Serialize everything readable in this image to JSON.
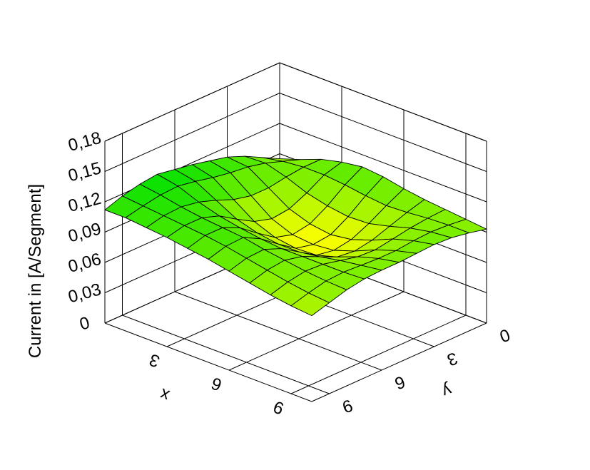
{
  "chart_data": {
    "type": "surface",
    "title": "",
    "xlabel": "x",
    "ylabel": "y",
    "zlabel": "Current in [A/Segment]",
    "x_range": [
      0,
      10
    ],
    "y_range": [
      0,
      10
    ],
    "z_range": [
      0,
      0.18
    ],
    "x_ticks": [
      {
        "value": 0,
        "label": ""
      },
      {
        "value": 3,
        "label": "3"
      },
      {
        "value": 6,
        "label": "6"
      },
      {
        "value": 9,
        "label": "9"
      }
    ],
    "y_ticks": [
      {
        "value": 0,
        "label": "0"
      },
      {
        "value": 3,
        "label": "3"
      },
      {
        "value": 6,
        "label": "6"
      },
      {
        "value": 9,
        "label": "9"
      }
    ],
    "z_ticks": [
      {
        "value": 0,
        "label": "0"
      },
      {
        "value": 0.03,
        "label": "0,03"
      },
      {
        "value": 0.06,
        "label": "0,06"
      },
      {
        "value": 0.09,
        "label": "0,09"
      },
      {
        "value": 0.12,
        "label": "0,12"
      },
      {
        "value": 0.15,
        "label": "0,15"
      },
      {
        "value": 0.18,
        "label": "0,18"
      }
    ],
    "grid": true,
    "colormap": {
      "low": "#ffff00",
      "high": "#00e000"
    },
    "x": [
      0,
      1,
      2,
      3,
      4,
      5,
      6,
      7,
      8,
      9,
      10
    ],
    "y": [
      0,
      1,
      2,
      3,
      4,
      5,
      6,
      7,
      8,
      9,
      10
    ],
    "z": [
      [
        0.085,
        0.094,
        0.103,
        0.11,
        0.114,
        0.118,
        0.121,
        0.124,
        0.122,
        0.118,
        0.112
      ],
      [
        0.092,
        0.098,
        0.104,
        0.108,
        0.11,
        0.113,
        0.117,
        0.12,
        0.119,
        0.116,
        0.112
      ],
      [
        0.1,
        0.1,
        0.098,
        0.095,
        0.095,
        0.099,
        0.106,
        0.112,
        0.115,
        0.114,
        0.11
      ],
      [
        0.105,
        0.1,
        0.09,
        0.082,
        0.08,
        0.085,
        0.095,
        0.106,
        0.112,
        0.112,
        0.108
      ],
      [
        0.108,
        0.098,
        0.085,
        0.075,
        0.072,
        0.077,
        0.089,
        0.102,
        0.11,
        0.11,
        0.105
      ],
      [
        0.106,
        0.095,
        0.082,
        0.072,
        0.07,
        0.074,
        0.086,
        0.099,
        0.108,
        0.107,
        0.102
      ],
      [
        0.102,
        0.093,
        0.083,
        0.075,
        0.072,
        0.075,
        0.086,
        0.097,
        0.104,
        0.103,
        0.098
      ],
      [
        0.099,
        0.094,
        0.088,
        0.082,
        0.079,
        0.081,
        0.089,
        0.097,
        0.101,
        0.099,
        0.094
      ],
      [
        0.097,
        0.096,
        0.094,
        0.091,
        0.088,
        0.089,
        0.093,
        0.097,
        0.098,
        0.095,
        0.09
      ],
      [
        0.095,
        0.097,
        0.098,
        0.097,
        0.095,
        0.095,
        0.096,
        0.097,
        0.096,
        0.092,
        0.087
      ],
      [
        0.093,
        0.097,
        0.1,
        0.101,
        0.1,
        0.099,
        0.099,
        0.098,
        0.095,
        0.09,
        0.085
      ]
    ]
  }
}
